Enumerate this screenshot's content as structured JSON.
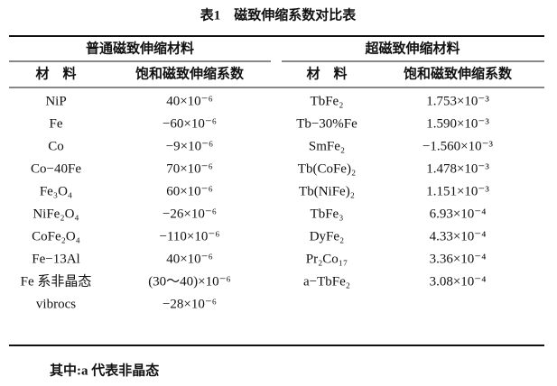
{
  "title": "表1　磁致伸缩系数对比表",
  "table": {
    "groups": [
      "普通磁致伸缩材料",
      "超磁致伸缩材料"
    ],
    "headers": [
      "材　料",
      "饱和磁致伸缩系数",
      "材　料",
      "饱和磁致伸缩系数"
    ],
    "rows": [
      [
        "NiP",
        "40×10⁻⁶",
        "TbFe₂",
        "1.753×10⁻³"
      ],
      [
        "Fe",
        "−60×10⁻⁶",
        "Tb−30%Fe",
        "1.590×10⁻³"
      ],
      [
        "Co",
        "−9×10⁻⁶",
        "SmFe₂",
        "−1.560×10⁻³"
      ],
      [
        "Co−40Fe",
        "70×10⁻⁶",
        "Tb(CoFe)₂",
        "1.478×10⁻³"
      ],
      [
        "Fe₃O₄",
        "60×10⁻⁶",
        "Tb(NiFe)₂",
        "1.151×10⁻³"
      ],
      [
        "NiFe₂O₄",
        "−26×10⁻⁶",
        "TbFe₃",
        "6.93×10⁻⁴"
      ],
      [
        "CoFe₂O₄",
        "−110×10⁻⁶",
        "DyFe₂",
        "4.33×10⁻⁴"
      ],
      [
        "Fe−13Al",
        "40×10⁻⁶",
        "Pr₂Co₁₇",
        "3.36×10⁻⁴"
      ],
      [
        "Fe 系非晶态",
        "(30～40)×10⁻⁶",
        "a−TbFe₂",
        "3.08×10⁻⁴"
      ],
      [
        "vibrocs",
        "−28×10⁻⁶"
      ]
    ]
  },
  "footnote": "其中:a 代表非晶态"
}
